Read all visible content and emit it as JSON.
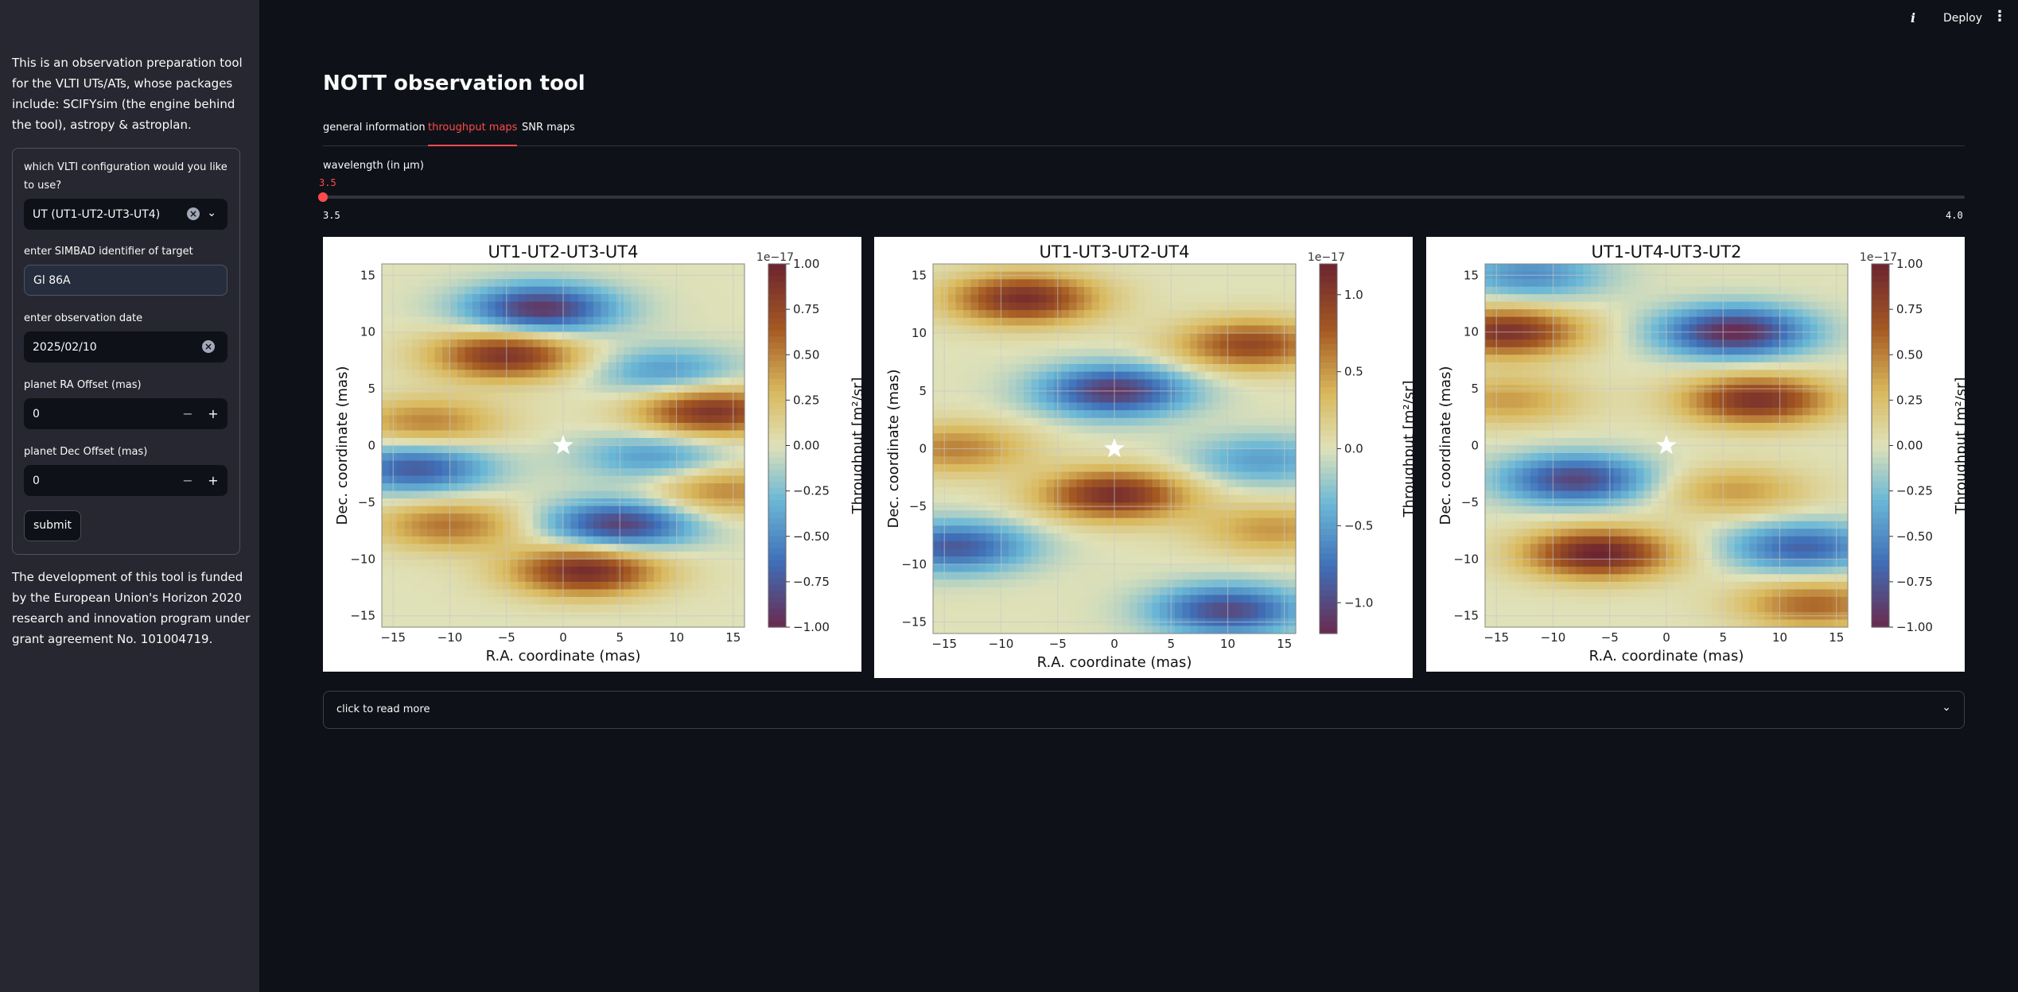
{
  "sidebar": {
    "intro": "This is an observation preparation tool for the VLTI UTs/ATs, whose packages include: SCIFYsim (the engine behind the tool), astropy & astroplan.",
    "config_label": "which VLTI configuration would you like to use?",
    "config_value": "UT (UT1-UT2-UT3-UT4)",
    "simbad_label": "enter SIMBAD identifier of target",
    "simbad_value": "Gl 86A",
    "date_label": "enter observation date",
    "date_value": "2025/02/10",
    "ra_label": "planet RA Offset (mas)",
    "ra_value": "0",
    "dec_label": "planet Dec Offset (mas)",
    "dec_value": "0",
    "submit_label": "submit",
    "footer": "The development of this tool is funded by the European Union's Horizon 2020 research and innovation program under grant agreement No. 101004719."
  },
  "header": {
    "info_glyph": "i",
    "deploy_label": "Deploy",
    "menu_glyph": "⋮"
  },
  "main": {
    "title": "NOTT observation tool",
    "tabs": [
      {
        "label": "general information"
      },
      {
        "label": "throughput maps"
      },
      {
        "label": "SNR maps"
      }
    ],
    "active_tab": "throughput maps",
    "slider": {
      "label": "wavelength (in μm)",
      "value": "3.5",
      "min": "3.5",
      "max": "4.0",
      "fraction": 0
    },
    "expander_label": "click to read more"
  },
  "icons": {
    "clear": "clear-icon",
    "chevron": "chevron-down-icon",
    "star": "star-marker-icon"
  },
  "colors": {
    "accent": "#ff4b4b",
    "sidebar_bg": "#262730",
    "main_bg": "#0e1117"
  },
  "chart_data": [
    {
      "type": "heatmap",
      "title": "UT1-UT2-UT3-UT4",
      "xlabel": "R.A. coordinate (mas)",
      "ylabel": "Dec. coordinate (mas)",
      "xticks": [
        "−15",
        "−10",
        "−5",
        "0",
        "5",
        "10",
        "15"
      ],
      "yticks": [
        "15",
        "10",
        "5",
        "0",
        "−5",
        "−10",
        "−15"
      ],
      "xlim": [
        -16,
        16
      ],
      "ylim": [
        -16,
        16
      ],
      "colorbar_label": "Throughput [m²/sr]",
      "colorbar_offset": "1e−17",
      "colorbar_ticks": [
        "1.00",
        "0.75",
        "0.50",
        "0.25",
        "0.00",
        "−0.25",
        "−0.50",
        "−0.75",
        "−1.00"
      ],
      "clim": [
        -1,
        1
      ],
      "grid": true,
      "marker": {
        "x": 0,
        "y": 0,
        "symbol": "star"
      },
      "lobes": [
        {
          "x": -2,
          "y": 12,
          "v": -0.95
        },
        {
          "x": -5,
          "y": 8,
          "v": 0.9
        },
        {
          "x": 9,
          "y": 6.5,
          "v": -0.45
        },
        {
          "x": 13,
          "y": 3,
          "v": 0.9
        },
        {
          "x": -12,
          "y": 2,
          "v": 0.5
        },
        {
          "x": -13,
          "y": -2,
          "v": -0.75
        },
        {
          "x": 8,
          "y": -1,
          "v": -0.45
        },
        {
          "x": 5,
          "y": -7,
          "v": -0.9
        },
        {
          "x": 2,
          "y": -11,
          "v": 0.95
        },
        {
          "x": -10,
          "y": -7,
          "v": 0.55
        },
        {
          "x": 14,
          "y": -4,
          "v": 0.5
        }
      ]
    },
    {
      "type": "heatmap",
      "title": "UT1-UT3-UT2-UT4",
      "xlabel": "R.A. coordinate (mas)",
      "ylabel": "Dec. coordinate (mas)",
      "xticks": [
        "−15",
        "−10",
        "−5",
        "0",
        "5",
        "10",
        "15"
      ],
      "yticks": [
        "15",
        "10",
        "5",
        "0",
        "−5",
        "−10",
        "−15"
      ],
      "xlim": [
        -16,
        16
      ],
      "ylim": [
        -16,
        16
      ],
      "colorbar_label": "Throughput [m²/sr]",
      "colorbar_offset": "1e−17",
      "colorbar_ticks": [
        "1.0",
        "0.5",
        "0.0",
        "−0.5",
        "−1.0"
      ],
      "clim": [
        -1.2,
        1.2
      ],
      "grid": true,
      "marker": {
        "x": 0,
        "y": 0,
        "symbol": "star"
      },
      "lobes": [
        {
          "x": -8,
          "y": 13,
          "v": 1.1
        },
        {
          "x": 12,
          "y": 9,
          "v": 0.9
        },
        {
          "x": 0,
          "y": 5,
          "v": -1.1
        },
        {
          "x": -14,
          "y": 0,
          "v": 0.6
        },
        {
          "x": 13,
          "y": -1,
          "v": -0.5
        },
        {
          "x": 0,
          "y": -4,
          "v": 1.1
        },
        {
          "x": -14,
          "y": -8.5,
          "v": -0.9
        },
        {
          "x": 10,
          "y": -14,
          "v": -1.0
        },
        {
          "x": 14,
          "y": -7,
          "v": 0.5
        }
      ]
    },
    {
      "type": "heatmap",
      "title": "UT1-UT4-UT3-UT2",
      "xlabel": "R.A. coordinate (mas)",
      "ylabel": "Dec. coordinate (mas)",
      "xticks": [
        "−15",
        "−10",
        "−5",
        "0",
        "5",
        "10",
        "15"
      ],
      "yticks": [
        "15",
        "10",
        "5",
        "0",
        "−5",
        "−10",
        "−15"
      ],
      "xlim": [
        -16,
        16
      ],
      "ylim": [
        -16,
        16
      ],
      "colorbar_label": "Throughput [m²/sr]",
      "colorbar_offset": "1e−17",
      "colorbar_ticks": [
        "1.00",
        "0.75",
        "0.50",
        "0.25",
        "0.00",
        "−0.25",
        "−0.50",
        "−0.75",
        "−1.00"
      ],
      "clim": [
        -1,
        1
      ],
      "grid": true,
      "marker": {
        "x": 0,
        "y": 0,
        "symbol": "star"
      },
      "lobes": [
        {
          "x": 6,
          "y": 10,
          "v": -1.0
        },
        {
          "x": -14,
          "y": 10,
          "v": 0.9
        },
        {
          "x": -12,
          "y": 15,
          "v": -0.5
        },
        {
          "x": 8,
          "y": 4,
          "v": 0.9
        },
        {
          "x": -8,
          "y": -3,
          "v": -0.85
        },
        {
          "x": -6,
          "y": -9.5,
          "v": 1.0
        },
        {
          "x": 12,
          "y": -9,
          "v": -0.7
        },
        {
          "x": 13,
          "y": -14,
          "v": 0.6
        },
        {
          "x": 6,
          "y": -4,
          "v": 0.4
        },
        {
          "x": -14,
          "y": 4,
          "v": 0.4
        }
      ]
    }
  ]
}
